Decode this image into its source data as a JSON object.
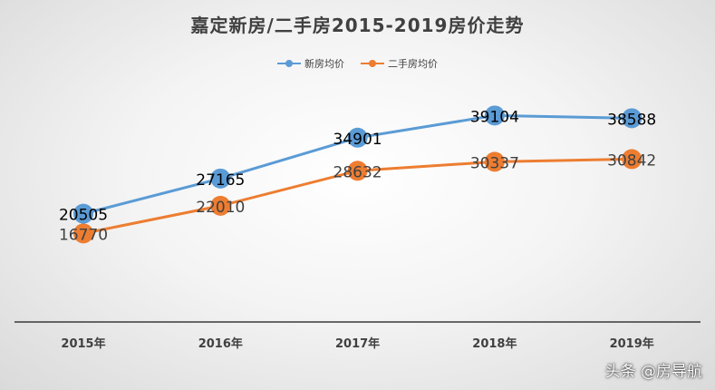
{
  "chart_data": {
    "type": "line",
    "title": "嘉定新房/二手房2015-2019房价走势",
    "categories": [
      "2015年",
      "2016年",
      "2017年",
      "2018年",
      "2019年"
    ],
    "series": [
      {
        "name": "新房均价",
        "values": [
          20505,
          27165,
          34901,
          39104,
          38588
        ],
        "color": "#5b9bd5",
        "label_color": "#000000"
      },
      {
        "name": "二手房均价",
        "values": [
          16770,
          22010,
          28632,
          30337,
          30842
        ],
        "color": "#ed7d31",
        "label_color": "#404040"
      }
    ],
    "ylim": [
      0,
      45000
    ],
    "grid": false,
    "legend_position": "top"
  },
  "watermark": "头条 @房导航"
}
